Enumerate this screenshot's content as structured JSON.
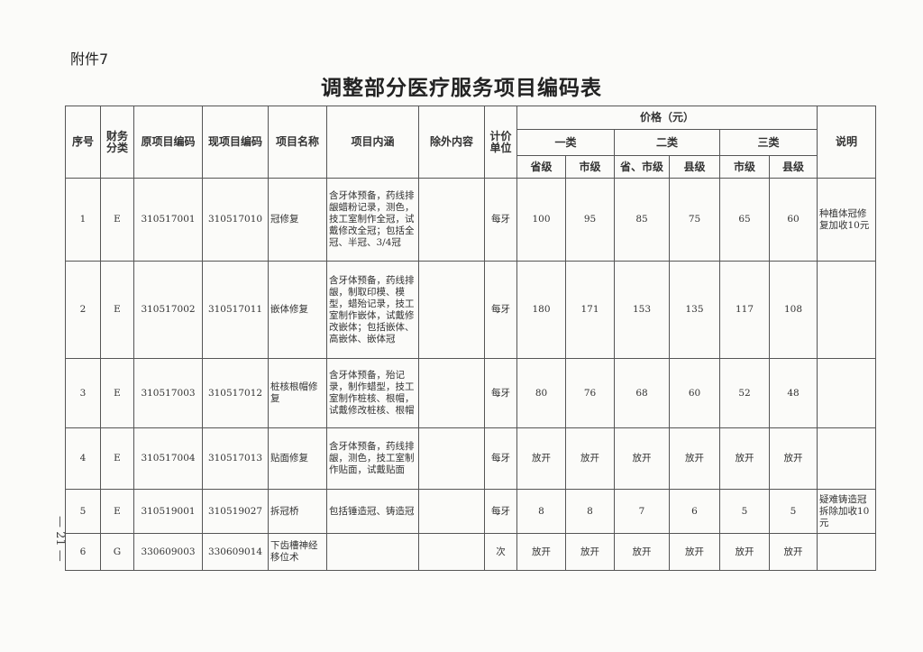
{
  "attachment_label": "附件7",
  "title": "调整部分医疗服务项目编码表",
  "page_number": "— 21 —",
  "headers": {
    "seq": "序号",
    "finance": "财务分类",
    "old_code": "原项目编码",
    "new_code": "现项目编码",
    "name": "项目名称",
    "content": "项目内涵",
    "excluded": "除外内容",
    "unit": "计价单位",
    "price": "价格（元）",
    "note": "说明",
    "class1": "一类",
    "class2": "二类",
    "class3": "三类",
    "sub": [
      "省级",
      "市级",
      "省、市级",
      "县级",
      "市级",
      "县级"
    ]
  },
  "rows": [
    {
      "seq": "1",
      "finance": "E",
      "old_code": "310517001",
      "new_code": "310517010",
      "name": "冠修复",
      "content": "含牙体预备，药线排龈蜡粉记录，测色，技工室制作全冠，试戴修改全冠；包括全冠、半冠、3/4冠",
      "excluded": "",
      "unit": "每牙",
      "prices": [
        "100",
        "95",
        "85",
        "75",
        "65",
        "60"
      ],
      "note": "种植体冠修复加收10元"
    },
    {
      "seq": "2",
      "finance": "E",
      "old_code": "310517002",
      "new_code": "310517011",
      "name": "嵌体修复",
      "content": "含牙体预备，药线排龈，制取印模、模型，蜡殆记录，技工室制作嵌体，试戴修改嵌体；包括嵌体、高嵌体、嵌体冠",
      "excluded": "",
      "unit": "每牙",
      "prices": [
        "180",
        "171",
        "153",
        "135",
        "117",
        "108"
      ],
      "note": ""
    },
    {
      "seq": "3",
      "finance": "E",
      "old_code": "310517003",
      "new_code": "310517012",
      "name": "桩核根帽修复",
      "content": "含牙体预备，殆记录，制作蜡型，技工室制作桩核、根帽，试戴修改桩核、根帽",
      "excluded": "",
      "unit": "每牙",
      "prices": [
        "80",
        "76",
        "68",
        "60",
        "52",
        "48"
      ],
      "note": ""
    },
    {
      "seq": "4",
      "finance": "E",
      "old_code": "310517004",
      "new_code": "310517013",
      "name": "贴面修复",
      "content": "含牙体预备，药线排龈，测色，技工室制作贴面，试戴贴面",
      "excluded": "",
      "unit": "每牙",
      "prices": [
        "放开",
        "放开",
        "放开",
        "放开",
        "放开",
        "放开"
      ],
      "note": ""
    },
    {
      "seq": "5",
      "finance": "E",
      "old_code": "310519001",
      "new_code": "310519027",
      "name": "拆冠桥",
      "content": "包括锤造冠、铸造冠",
      "excluded": "",
      "unit": "每牙",
      "prices": [
        "8",
        "8",
        "7",
        "6",
        "5",
        "5"
      ],
      "note": "疑难铸造冠拆除加收10元"
    },
    {
      "seq": "6",
      "finance": "G",
      "old_code": "330609003",
      "new_code": "330609014",
      "name": "下齿槽神经移位术",
      "content": "",
      "excluded": "",
      "unit": "次",
      "prices": [
        "放开",
        "放开",
        "放开",
        "放开",
        "放开",
        "放开"
      ],
      "note": ""
    }
  ]
}
